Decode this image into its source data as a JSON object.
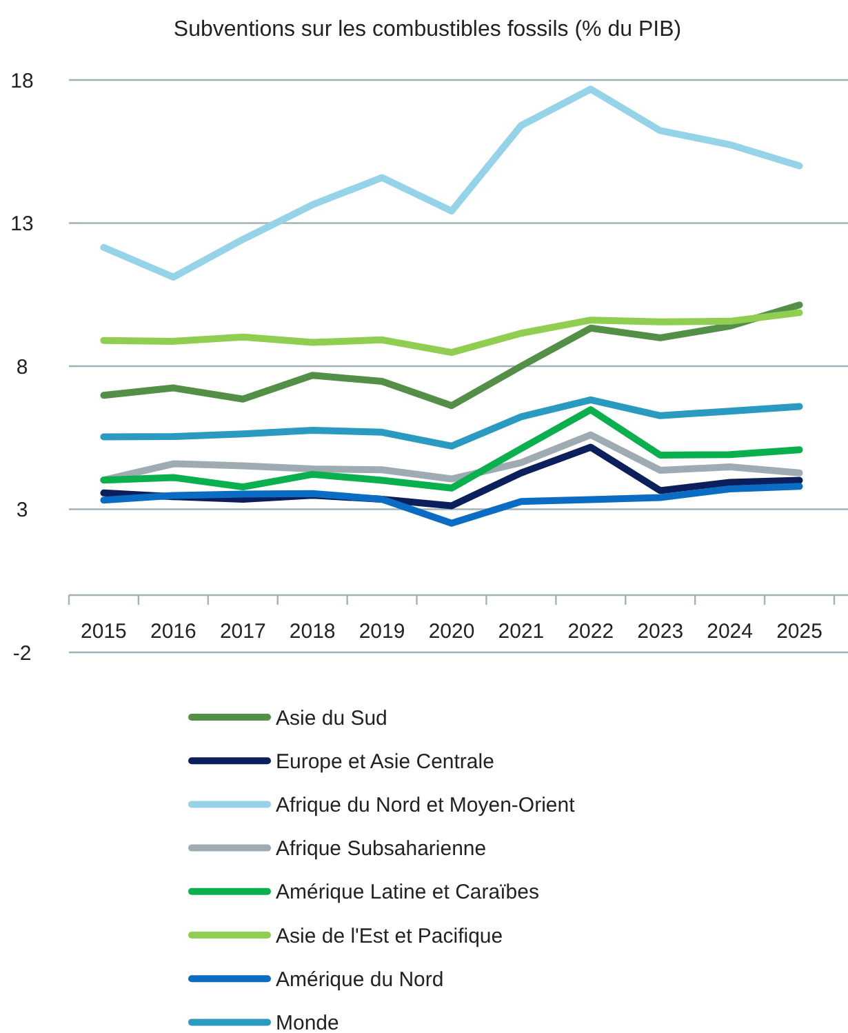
{
  "chart_data": {
    "type": "line",
    "title": "Subventions sur les combustibles fossils (% du PIB)",
    "categories": [
      "2015",
      "2016",
      "2017",
      "2018",
      "2019",
      "2020",
      "2021",
      "2022",
      "2023",
      "2024",
      "2025"
    ],
    "ylim": [
      -2,
      18
    ],
    "yticks": [
      -2,
      3,
      8,
      13,
      18
    ],
    "grid": "y",
    "legend": "bottom",
    "marker": "none",
    "line_style": "solid",
    "series": [
      {
        "name": "Asie du Sud",
        "color": "#548f47",
        "values": [
          6.98,
          7.24,
          6.85,
          7.68,
          7.47,
          6.62,
          8.0,
          9.33,
          8.99,
          9.4,
          10.14
        ]
      },
      {
        "name": "Europe et Asie Centrale",
        "color": "#0b1f5c",
        "values": [
          3.57,
          3.44,
          3.35,
          3.49,
          3.35,
          3.12,
          4.27,
          5.17,
          3.65,
          3.94,
          4.01
        ]
      },
      {
        "name": "Afrique du Nord et Moyen-Orient",
        "color": "#94d3e8",
        "values": [
          12.15,
          11.11,
          12.43,
          13.64,
          14.59,
          13.42,
          16.41,
          17.68,
          16.23,
          15.74,
          15.0
        ]
      },
      {
        "name": "Afrique Subsaharienne",
        "color": "#9eabb2",
        "values": [
          4.02,
          4.59,
          4.52,
          4.41,
          4.38,
          4.06,
          4.63,
          5.6,
          4.36,
          4.48,
          4.27
        ]
      },
      {
        "name": "Amérique Latine et Caraïbes",
        "color": "#0bb04e",
        "values": [
          4.02,
          4.11,
          3.78,
          4.22,
          4.01,
          3.74,
          5.12,
          6.48,
          4.89,
          4.91,
          5.08
        ]
      },
      {
        "name": "Asie de l'Est et Pacifique",
        "color": "#8fce50",
        "values": [
          8.9,
          8.87,
          9.02,
          8.83,
          8.92,
          8.48,
          9.15,
          9.61,
          9.55,
          9.57,
          9.87
        ]
      },
      {
        "name": "Amérique du Nord",
        "color": "#0a6cc2",
        "values": [
          3.32,
          3.48,
          3.53,
          3.55,
          3.35,
          2.51,
          3.27,
          3.34,
          3.41,
          3.71,
          3.8
        ]
      },
      {
        "name": "Monde",
        "color": "#2a9ac0",
        "values": [
          5.53,
          5.54,
          5.63,
          5.76,
          5.69,
          5.21,
          6.23,
          6.82,
          6.27,
          6.43,
          6.59
        ]
      }
    ]
  }
}
